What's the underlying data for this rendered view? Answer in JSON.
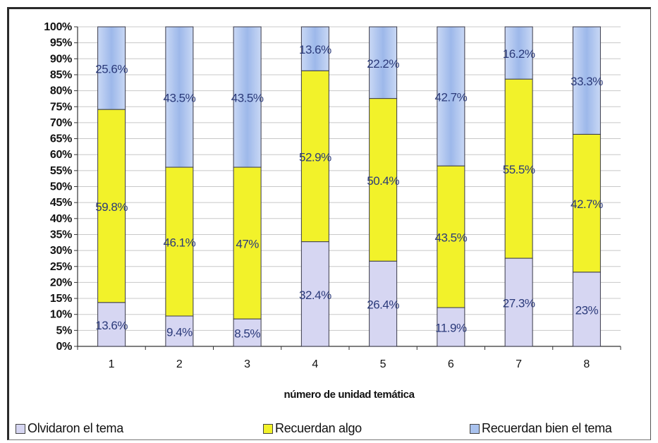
{
  "chart_data": {
    "type": "bar",
    "stacked": true,
    "percent_stacked": true,
    "categories": [
      "1",
      "2",
      "3",
      "4",
      "5",
      "6",
      "7",
      "8"
    ],
    "series": [
      {
        "name": "Olvidaron el tema",
        "color": "#d6d6f2",
        "values": [
          13.6,
          9.4,
          8.5,
          32.4,
          26.4,
          11.9,
          27.3,
          23
        ],
        "labels": [
          "13.6%",
          "9.4%",
          "8.5%",
          "32.4%",
          "26.4%",
          "11.9%",
          "27.3%",
          "23%"
        ]
      },
      {
        "name": "Recuerdan algo",
        "color": "#f2f22a",
        "values": [
          59.8,
          46.1,
          47,
          52.9,
          50.4,
          43.5,
          55.5,
          42.7
        ],
        "labels": [
          "59.8%",
          "46.1%",
          "47%",
          "52.9%",
          "50.4%",
          "43.5%",
          "55.5%",
          "42.7%"
        ]
      },
      {
        "name": "Recuerdan bien el tema",
        "color": "#a9c2ee",
        "values": [
          25.6,
          43.5,
          43.5,
          13.6,
          22.2,
          42.7,
          16.2,
          33.3
        ],
        "labels": [
          "25.6%",
          "43.5%",
          "43.5%",
          "13.6%",
          "22.2%",
          "42.7%",
          "16.2%",
          "33.3%"
        ]
      }
    ],
    "xlabel": "número de unidad temática",
    "ylabel": "",
    "ylim": [
      0,
      100
    ],
    "yticks": [
      "0%",
      "5%",
      "10%",
      "15%",
      "20%",
      "25%",
      "30%",
      "35%",
      "40%",
      "45%",
      "50%",
      "55%",
      "60%",
      "65%",
      "70%",
      "75%",
      "80%",
      "85%",
      "90%",
      "95%",
      "100%"
    ],
    "grid": true,
    "legend_position": "bottom"
  },
  "legend": {
    "items": [
      {
        "label": "Olvidaron el tema",
        "color": "#d6d6f2"
      },
      {
        "label": "Recuerdan algo",
        "color": "#f2f22a"
      },
      {
        "label": "Recuerdan bien el tema",
        "color": "#a9c2ee"
      }
    ]
  }
}
